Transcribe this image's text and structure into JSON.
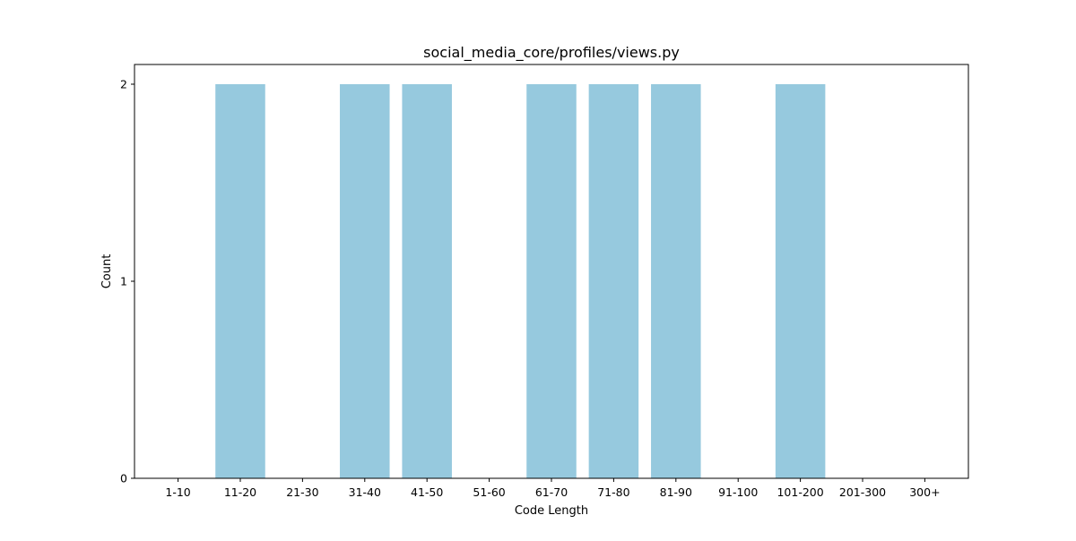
{
  "chart_data": {
    "type": "bar",
    "title": "social_media_core/profiles/views.py",
    "xlabel": "Code Length",
    "ylabel": "Count",
    "categories": [
      "1-10",
      "11-20",
      "21-30",
      "31-40",
      "41-50",
      "51-60",
      "61-70",
      "71-80",
      "81-90",
      "91-100",
      "101-200",
      "201-300",
      "300+"
    ],
    "values": [
      0,
      2,
      0,
      2,
      2,
      0,
      2,
      2,
      2,
      0,
      2,
      0,
      0
    ],
    "ylim": [
      0,
      2.1
    ],
    "yticks": [
      0,
      1,
      2
    ],
    "grid": false,
    "bar_color": "#96c9de",
    "axis_color": "#000000"
  }
}
